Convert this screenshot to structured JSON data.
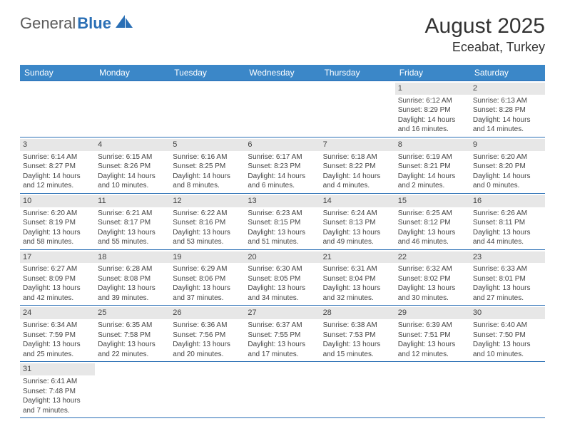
{
  "logo": {
    "general": "General",
    "blue": "Blue"
  },
  "title": "August 2025",
  "location": "Eceabat, Turkey",
  "weekdays": [
    "Sunday",
    "Monday",
    "Tuesday",
    "Wednesday",
    "Thursday",
    "Friday",
    "Saturday"
  ],
  "colors": {
    "header_bg": "#3b87c8",
    "border": "#2a6fb5",
    "daynum_bg": "#e7e7e7",
    "text": "#444444",
    "logo_gray": "#5a5a5a",
    "logo_blue": "#2a6fb5"
  },
  "weeks": [
    [
      null,
      null,
      null,
      null,
      null,
      {
        "n": "1",
        "sr": "Sunrise: 6:12 AM",
        "ss": "Sunset: 8:29 PM",
        "d1": "Daylight: 14 hours",
        "d2": "and 16 minutes."
      },
      {
        "n": "2",
        "sr": "Sunrise: 6:13 AM",
        "ss": "Sunset: 8:28 PM",
        "d1": "Daylight: 14 hours",
        "d2": "and 14 minutes."
      }
    ],
    [
      {
        "n": "3",
        "sr": "Sunrise: 6:14 AM",
        "ss": "Sunset: 8:27 PM",
        "d1": "Daylight: 14 hours",
        "d2": "and 12 minutes."
      },
      {
        "n": "4",
        "sr": "Sunrise: 6:15 AM",
        "ss": "Sunset: 8:26 PM",
        "d1": "Daylight: 14 hours",
        "d2": "and 10 minutes."
      },
      {
        "n": "5",
        "sr": "Sunrise: 6:16 AM",
        "ss": "Sunset: 8:25 PM",
        "d1": "Daylight: 14 hours",
        "d2": "and 8 minutes."
      },
      {
        "n": "6",
        "sr": "Sunrise: 6:17 AM",
        "ss": "Sunset: 8:23 PM",
        "d1": "Daylight: 14 hours",
        "d2": "and 6 minutes."
      },
      {
        "n": "7",
        "sr": "Sunrise: 6:18 AM",
        "ss": "Sunset: 8:22 PM",
        "d1": "Daylight: 14 hours",
        "d2": "and 4 minutes."
      },
      {
        "n": "8",
        "sr": "Sunrise: 6:19 AM",
        "ss": "Sunset: 8:21 PM",
        "d1": "Daylight: 14 hours",
        "d2": "and 2 minutes."
      },
      {
        "n": "9",
        "sr": "Sunrise: 6:20 AM",
        "ss": "Sunset: 8:20 PM",
        "d1": "Daylight: 14 hours",
        "d2": "and 0 minutes."
      }
    ],
    [
      {
        "n": "10",
        "sr": "Sunrise: 6:20 AM",
        "ss": "Sunset: 8:19 PM",
        "d1": "Daylight: 13 hours",
        "d2": "and 58 minutes."
      },
      {
        "n": "11",
        "sr": "Sunrise: 6:21 AM",
        "ss": "Sunset: 8:17 PM",
        "d1": "Daylight: 13 hours",
        "d2": "and 55 minutes."
      },
      {
        "n": "12",
        "sr": "Sunrise: 6:22 AM",
        "ss": "Sunset: 8:16 PM",
        "d1": "Daylight: 13 hours",
        "d2": "and 53 minutes."
      },
      {
        "n": "13",
        "sr": "Sunrise: 6:23 AM",
        "ss": "Sunset: 8:15 PM",
        "d1": "Daylight: 13 hours",
        "d2": "and 51 minutes."
      },
      {
        "n": "14",
        "sr": "Sunrise: 6:24 AM",
        "ss": "Sunset: 8:13 PM",
        "d1": "Daylight: 13 hours",
        "d2": "and 49 minutes."
      },
      {
        "n": "15",
        "sr": "Sunrise: 6:25 AM",
        "ss": "Sunset: 8:12 PM",
        "d1": "Daylight: 13 hours",
        "d2": "and 46 minutes."
      },
      {
        "n": "16",
        "sr": "Sunrise: 6:26 AM",
        "ss": "Sunset: 8:11 PM",
        "d1": "Daylight: 13 hours",
        "d2": "and 44 minutes."
      }
    ],
    [
      {
        "n": "17",
        "sr": "Sunrise: 6:27 AM",
        "ss": "Sunset: 8:09 PM",
        "d1": "Daylight: 13 hours",
        "d2": "and 42 minutes."
      },
      {
        "n": "18",
        "sr": "Sunrise: 6:28 AM",
        "ss": "Sunset: 8:08 PM",
        "d1": "Daylight: 13 hours",
        "d2": "and 39 minutes."
      },
      {
        "n": "19",
        "sr": "Sunrise: 6:29 AM",
        "ss": "Sunset: 8:06 PM",
        "d1": "Daylight: 13 hours",
        "d2": "and 37 minutes."
      },
      {
        "n": "20",
        "sr": "Sunrise: 6:30 AM",
        "ss": "Sunset: 8:05 PM",
        "d1": "Daylight: 13 hours",
        "d2": "and 34 minutes."
      },
      {
        "n": "21",
        "sr": "Sunrise: 6:31 AM",
        "ss": "Sunset: 8:04 PM",
        "d1": "Daylight: 13 hours",
        "d2": "and 32 minutes."
      },
      {
        "n": "22",
        "sr": "Sunrise: 6:32 AM",
        "ss": "Sunset: 8:02 PM",
        "d1": "Daylight: 13 hours",
        "d2": "and 30 minutes."
      },
      {
        "n": "23",
        "sr": "Sunrise: 6:33 AM",
        "ss": "Sunset: 8:01 PM",
        "d1": "Daylight: 13 hours",
        "d2": "and 27 minutes."
      }
    ],
    [
      {
        "n": "24",
        "sr": "Sunrise: 6:34 AM",
        "ss": "Sunset: 7:59 PM",
        "d1": "Daylight: 13 hours",
        "d2": "and 25 minutes."
      },
      {
        "n": "25",
        "sr": "Sunrise: 6:35 AM",
        "ss": "Sunset: 7:58 PM",
        "d1": "Daylight: 13 hours",
        "d2": "and 22 minutes."
      },
      {
        "n": "26",
        "sr": "Sunrise: 6:36 AM",
        "ss": "Sunset: 7:56 PM",
        "d1": "Daylight: 13 hours",
        "d2": "and 20 minutes."
      },
      {
        "n": "27",
        "sr": "Sunrise: 6:37 AM",
        "ss": "Sunset: 7:55 PM",
        "d1": "Daylight: 13 hours",
        "d2": "and 17 minutes."
      },
      {
        "n": "28",
        "sr": "Sunrise: 6:38 AM",
        "ss": "Sunset: 7:53 PM",
        "d1": "Daylight: 13 hours",
        "d2": "and 15 minutes."
      },
      {
        "n": "29",
        "sr": "Sunrise: 6:39 AM",
        "ss": "Sunset: 7:51 PM",
        "d1": "Daylight: 13 hours",
        "d2": "and 12 minutes."
      },
      {
        "n": "30",
        "sr": "Sunrise: 6:40 AM",
        "ss": "Sunset: 7:50 PM",
        "d1": "Daylight: 13 hours",
        "d2": "and 10 minutes."
      }
    ],
    [
      {
        "n": "31",
        "sr": "Sunrise: 6:41 AM",
        "ss": "Sunset: 7:48 PM",
        "d1": "Daylight: 13 hours",
        "d2": "and 7 minutes."
      },
      null,
      null,
      null,
      null,
      null,
      null
    ]
  ]
}
